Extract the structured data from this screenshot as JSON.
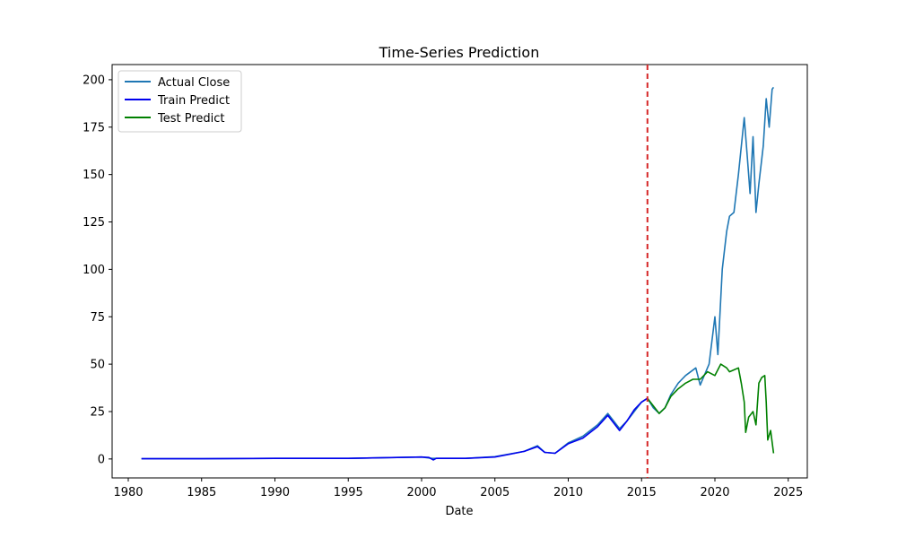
{
  "chart_data": {
    "type": "line",
    "title": "Time-Series Prediction",
    "xlabel": "Date",
    "ylabel": "",
    "xlim": [
      1978.9,
      2026.3
    ],
    "ylim": [
      -10,
      208
    ],
    "x_ticks": [
      1980,
      1985,
      1990,
      1995,
      2000,
      2005,
      2010,
      2015,
      2020,
      2025
    ],
    "y_ticks": [
      0,
      25,
      50,
      75,
      100,
      125,
      150,
      175,
      200
    ],
    "grid": false,
    "legend_position": "upper-left",
    "split_line": {
      "x": 2015.4,
      "color": "#d62728",
      "style": "dashed"
    },
    "series": [
      {
        "name": "Actual Close",
        "color": "#1f77b4",
        "x": [
          1980.9,
          1985,
          1990,
          1995,
          2000,
          2000.7,
          2003,
          2005,
          2007,
          2007.9,
          2008.4,
          2009.1,
          2010,
          2011,
          2012,
          2012.7,
          2013.5,
          2014,
          2015,
          2015.4,
          2015.8,
          2016.2,
          2016.6,
          2017,
          2017.5,
          2018,
          2018.7,
          2019,
          2019.6,
          2020,
          2020.2,
          2020.5,
          2020.8,
          2021,
          2021.3,
          2021.6,
          2022,
          2022.2,
          2022.4,
          2022.6,
          2022.8,
          2023,
          2023.3,
          2023.5,
          2023.7,
          2023.9,
          2024
        ],
        "y": [
          0.1,
          0.1,
          0.3,
          0.3,
          1.0,
          0.3,
          0.3,
          1.2,
          4.0,
          7.0,
          3.5,
          3.0,
          8.5,
          12,
          18,
          24,
          16,
          20,
          30,
          32,
          27,
          24,
          27,
          34,
          40,
          44,
          48,
          39,
          50,
          75,
          55,
          100,
          120,
          128,
          130,
          150,
          180,
          160,
          140,
          170,
          130,
          145,
          165,
          190,
          175,
          195,
          196
        ]
      },
      {
        "name": "Train Predict",
        "color": "#0000ee",
        "x": [
          1980.9,
          1985,
          1990,
          1995,
          2000,
          2000.5,
          2000.8,
          2001,
          2003,
          2005,
          2006,
          2007,
          2007.9,
          2008.4,
          2009.1,
          2010,
          2011,
          2012,
          2012.7,
          2013.5,
          2014,
          2014.5,
          2015,
          2015.4
        ],
        "y": [
          0.1,
          0.1,
          0.3,
          0.3,
          1.0,
          0.8,
          -0.5,
          0.3,
          0.3,
          1.0,
          2.5,
          4.0,
          6.5,
          3.5,
          3.0,
          8.0,
          11,
          17,
          23,
          15,
          20,
          26,
          30,
          32
        ]
      },
      {
        "name": "Test Predict",
        "color": "#008000",
        "x": [
          2015.4,
          2015.8,
          2016.2,
          2016.6,
          2017,
          2017.5,
          2018,
          2018.5,
          2019,
          2019.5,
          2020,
          2020.4,
          2020.8,
          2021,
          2021.3,
          2021.6,
          2021.8,
          2022,
          2022.1,
          2022.3,
          2022.6,
          2022.8,
          2023,
          2023.2,
          2023.4,
          2023.5,
          2023.6,
          2023.8,
          2024
        ],
        "y": [
          32,
          28,
          24,
          27,
          33,
          37,
          40,
          42,
          42,
          46,
          44,
          50,
          48,
          46,
          47,
          48,
          40,
          30,
          14,
          22,
          25,
          18,
          40,
          43,
          44,
          30,
          10,
          15,
          3
        ]
      }
    ]
  }
}
